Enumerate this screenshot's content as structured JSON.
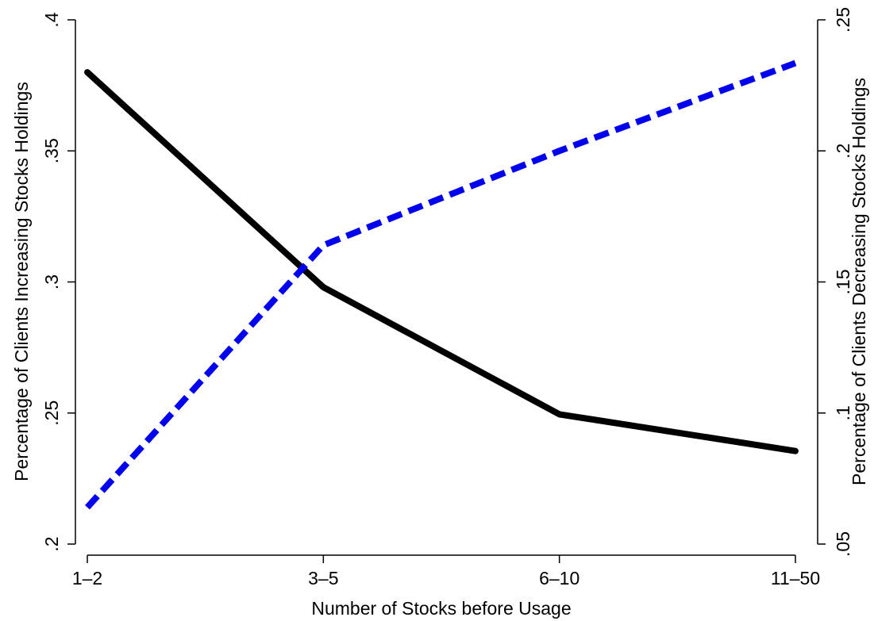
{
  "chart_data": {
    "type": "line",
    "categories": [
      "1–2",
      "3–5",
      "6–10",
      "11–50"
    ],
    "xlabel": "Number of Stocks before Usage",
    "ylabel_left": "Percentage of Clients Increasing Stocks Holdings",
    "ylabel_right": "Percentage of Clients Decreasing Stocks Holdings",
    "ylim_left": [
      0.2,
      0.4
    ],
    "ylim_right": [
      0.05,
      0.25
    ],
    "yticks_left": [
      {
        "value": 0.2,
        "label": ".2"
      },
      {
        "value": 0.25,
        "label": ".25"
      },
      {
        "value": 0.3,
        "label": ".3"
      },
      {
        "value": 0.35,
        "label": ".35"
      },
      {
        "value": 0.4,
        "label": ".4"
      }
    ],
    "yticks_right": [
      {
        "value": 0.05,
        "label": ".05"
      },
      {
        "value": 0.1,
        "label": ".1"
      },
      {
        "value": 0.15,
        "label": ".15"
      },
      {
        "value": 0.2,
        "label": ".2"
      },
      {
        "value": 0.25,
        "label": ".25"
      }
    ],
    "series": [
      {
        "axis": "left",
        "color": "#000000",
        "style": "solid",
        "values": [
          0.38,
          0.298,
          0.2495,
          0.2355
        ]
      },
      {
        "axis": "right",
        "color": "#0000ee",
        "style": "dashed",
        "values": [
          0.064,
          0.164,
          0.2,
          0.2335
        ]
      }
    ],
    "grid": false,
    "legend": "none"
  }
}
